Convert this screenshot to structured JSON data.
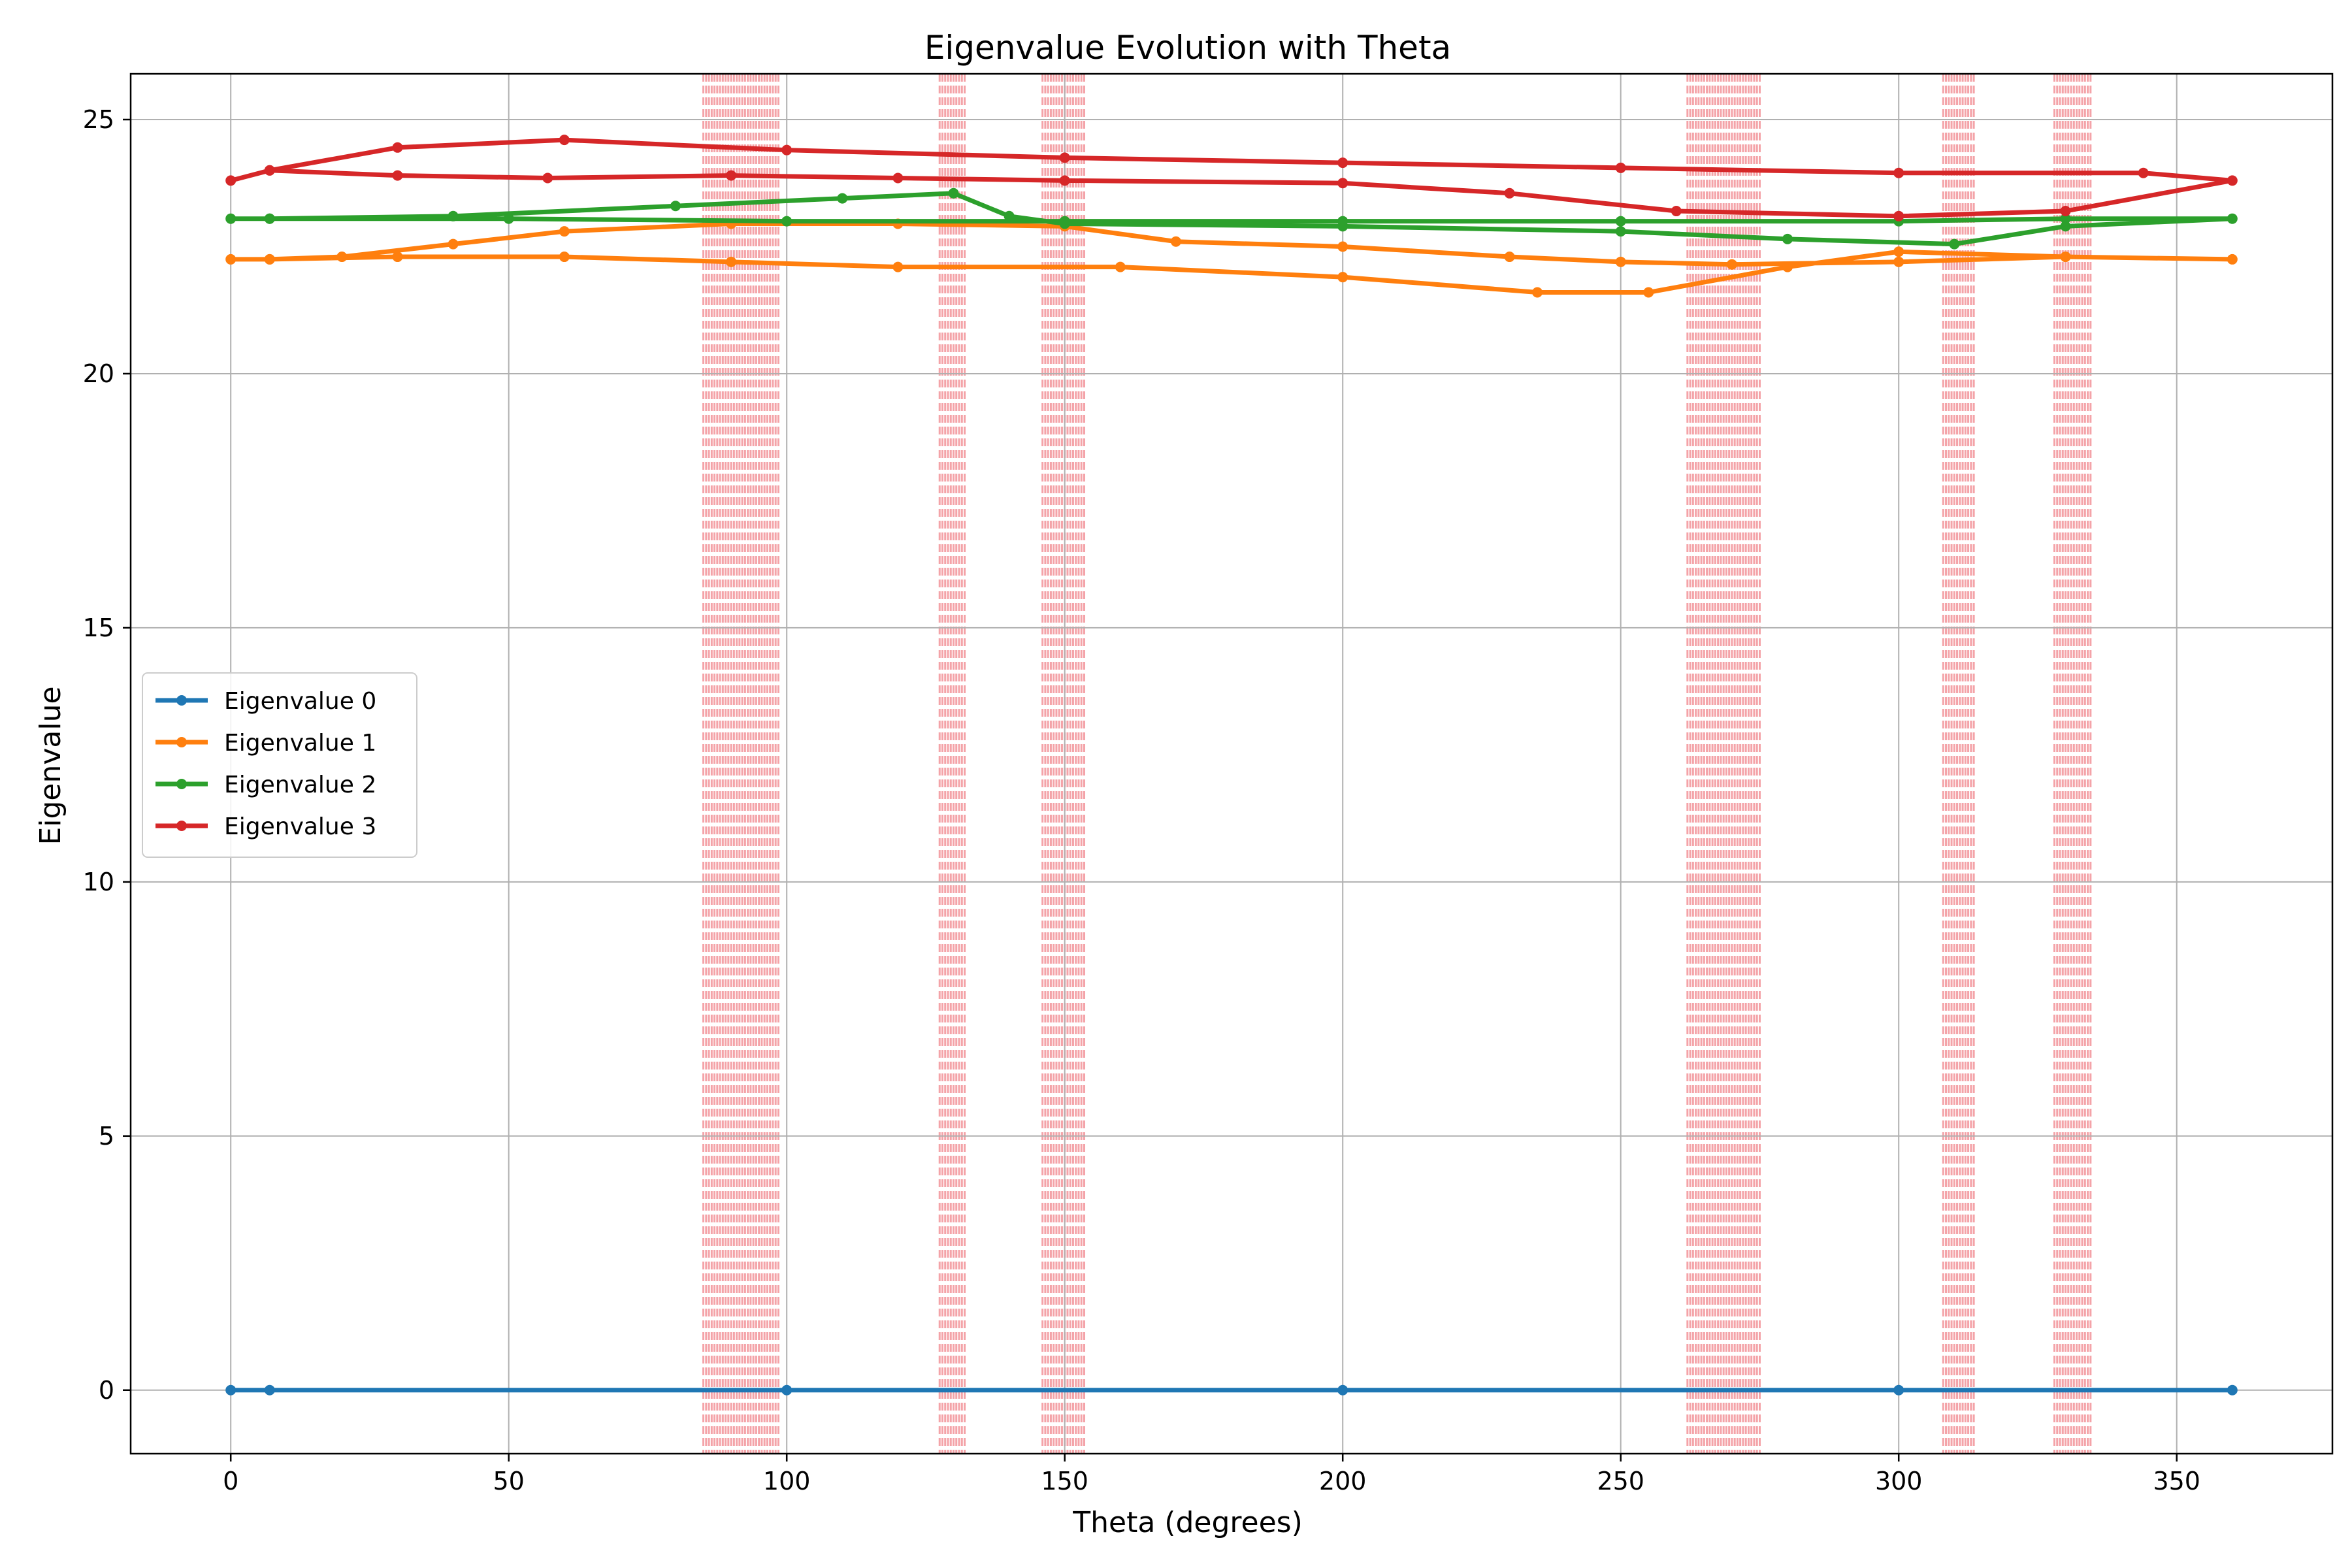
{
  "chart_data": {
    "type": "line",
    "title": "Eigenvalue Evolution with Theta",
    "xlabel": "Theta (degrees)",
    "ylabel": "Eigenvalue",
    "xlim": [
      -18,
      378
    ],
    "ylim": [
      -1.25,
      25.9
    ],
    "xticks": [
      0,
      50,
      100,
      150,
      200,
      250,
      300,
      350
    ],
    "yticks": [
      0,
      5,
      10,
      15,
      20,
      25
    ],
    "grid": true,
    "legend_position": "center-left",
    "shaded_bands": [
      [
        85,
        98.5
      ],
      [
        127.5,
        132
      ],
      [
        146,
        153.5
      ],
      [
        262,
        275
      ],
      [
        308,
        313.5
      ],
      [
        328,
        334.5
      ]
    ],
    "series": [
      {
        "name": "Eigenvalue 0",
        "color": "#1f77b4",
        "points": [
          [
            0,
            0.0
          ],
          [
            7,
            0.0
          ],
          [
            100,
            0.0
          ],
          [
            200,
            0.0
          ],
          [
            300,
            0.0
          ],
          [
            360,
            0.0
          ]
        ]
      },
      {
        "name": "Eigenvalue 1",
        "color": "#ff7f0e",
        "points": [
          [
            0,
            22.25
          ],
          [
            7,
            22.25
          ],
          [
            20,
            22.3
          ],
          [
            40,
            22.55
          ],
          [
            60,
            22.8
          ],
          [
            90,
            22.95
          ],
          [
            120,
            22.95
          ],
          [
            150,
            22.9
          ],
          [
            170,
            22.6
          ],
          [
            200,
            22.5
          ],
          [
            230,
            22.3
          ],
          [
            250,
            22.2
          ],
          [
            270,
            22.15
          ],
          [
            300,
            22.2
          ],
          [
            330,
            22.3
          ],
          [
            360,
            22.25
          ],
          [
            330,
            22.3
          ],
          [
            300,
            22.4
          ],
          [
            280,
            22.1
          ],
          [
            255,
            21.6
          ],
          [
            235,
            21.6
          ],
          [
            200,
            21.9
          ],
          [
            160,
            22.1
          ],
          [
            120,
            22.1
          ],
          [
            90,
            22.2
          ],
          [
            60,
            22.3
          ],
          [
            30,
            22.3
          ],
          [
            7,
            22.25
          ]
        ]
      },
      {
        "name": "Eigenvalue 2",
        "color": "#2ca02c",
        "points": [
          [
            0,
            23.05
          ],
          [
            7,
            23.05
          ],
          [
            40,
            23.1
          ],
          [
            80,
            23.3
          ],
          [
            110,
            23.45
          ],
          [
            130,
            23.55
          ],
          [
            140,
            23.1
          ],
          [
            150,
            22.95
          ],
          [
            200,
            22.9
          ],
          [
            250,
            22.8
          ],
          [
            280,
            22.65
          ],
          [
            310,
            22.55
          ],
          [
            330,
            22.9
          ],
          [
            360,
            23.05
          ],
          [
            330,
            23.05
          ],
          [
            300,
            23.0
          ],
          [
            250,
            23.0
          ],
          [
            200,
            23.0
          ],
          [
            150,
            23.0
          ],
          [
            100,
            23.0
          ],
          [
            50,
            23.05
          ],
          [
            7,
            23.05
          ]
        ]
      },
      {
        "name": "Eigenvalue 3",
        "color": "#d62728",
        "points": [
          [
            0,
            23.8
          ],
          [
            7,
            24.0
          ],
          [
            30,
            24.45
          ],
          [
            60,
            24.6
          ],
          [
            100,
            24.4
          ],
          [
            150,
            24.25
          ],
          [
            200,
            24.15
          ],
          [
            250,
            24.05
          ],
          [
            300,
            23.95
          ],
          [
            344,
            23.95
          ],
          [
            360,
            23.8
          ],
          [
            330,
            23.2
          ],
          [
            300,
            23.1
          ],
          [
            260,
            23.2
          ],
          [
            230,
            23.55
          ],
          [
            200,
            23.75
          ],
          [
            150,
            23.8
          ],
          [
            120,
            23.85
          ],
          [
            90,
            23.9
          ],
          [
            57,
            23.85
          ],
          [
            30,
            23.9
          ],
          [
            7,
            24.0
          ]
        ]
      }
    ]
  }
}
